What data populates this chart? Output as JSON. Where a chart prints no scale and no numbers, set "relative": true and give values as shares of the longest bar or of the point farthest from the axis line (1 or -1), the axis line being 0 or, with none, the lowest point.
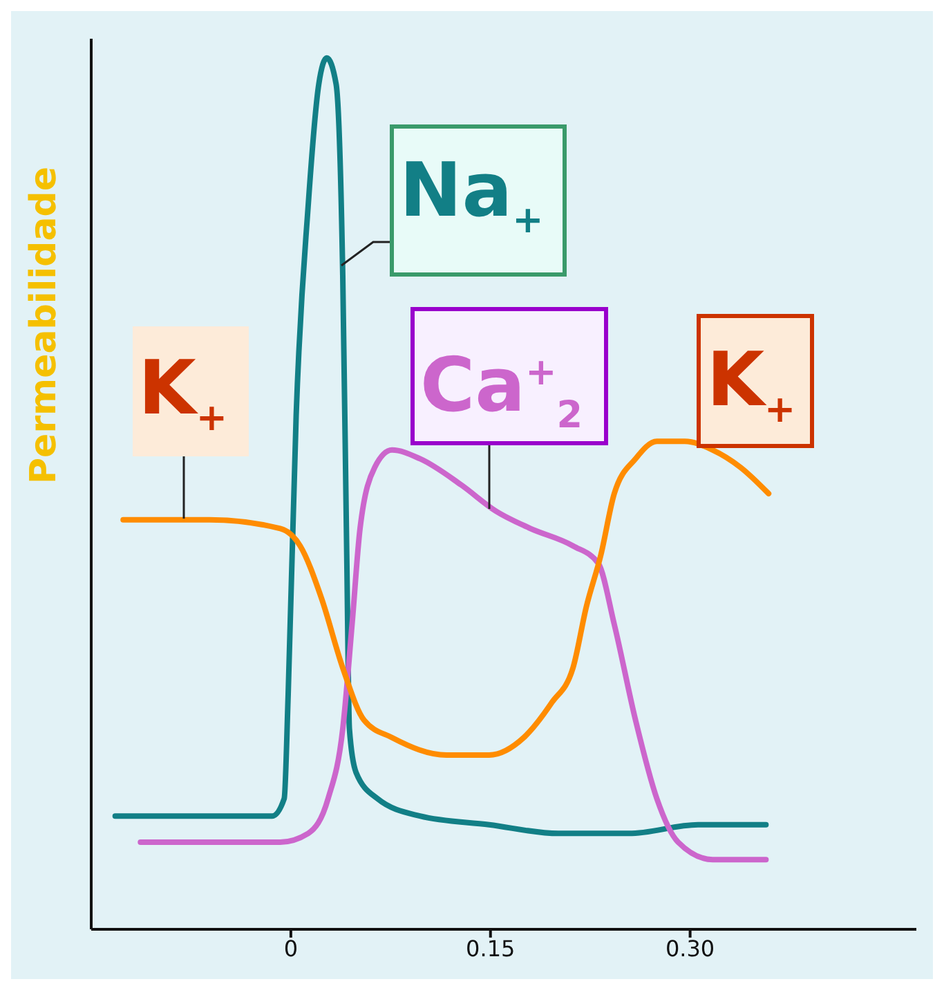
{
  "chart_data": {
    "type": "line",
    "ylabel": "Permeabilidade",
    "relative": true,
    "xlim": [
      -0.15,
      0.47
    ],
    "xticks": [
      0,
      0.15,
      {
        "value": 0.3,
        "label": "0.30"
      }
    ],
    "series": [
      {
        "name": "Na$_{+}$",
        "color": "#127f86",
        "x": [
          -0.132,
          -0.014,
          -0.005,
          -0.002,
          0.004,
          0.013,
          0.021,
          0.027,
          0.034,
          0.039,
          0.042,
          0.044,
          0.049,
          0.065,
          0.097,
          0.149,
          0.201,
          0.254,
          0.306,
          0.357
        ],
        "values": [
          0.13,
          0.13,
          0.15,
          0.27,
          0.59,
          0.83,
          0.97,
          1,
          0.97,
          0.75,
          0.43,
          0.23,
          0.18,
          0.15,
          0.13,
          0.12,
          0.11,
          0.11,
          0.12,
          0.12
        ]
      },
      {
        "name": "Ca$^{+}$$_{2}$",
        "color": "#cc66cc",
        "x": [
          -0.113,
          -0.008,
          0.013,
          0.028,
          0.039,
          0.046,
          0.052,
          0.063,
          0.076,
          0.097,
          0.128,
          0.154,
          0.18,
          0.212,
          0.231,
          0.243,
          0.259,
          0.275,
          0.291,
          0.317,
          0.357
        ],
        "values": [
          0.1,
          0.1,
          0.11,
          0.15,
          0.23,
          0.35,
          0.46,
          0.53,
          0.55,
          0.54,
          0.51,
          0.48,
          0.46,
          0.44,
          0.42,
          0.35,
          0.24,
          0.15,
          0.1,
          0.08,
          0.08
        ]
      },
      {
        "name": "K$_{+}$",
        "color": "#ff8c00",
        "x": [
          -0.126,
          -0.061,
          -0.008,
          0.007,
          0.023,
          0.039,
          0.055,
          0.076,
          0.117,
          0.149,
          0.175,
          0.196,
          0.212,
          0.222,
          0.233,
          0.243,
          0.259,
          0.275,
          0.296,
          0.317,
          0.338,
          0.359
        ],
        "values": [
          0.47,
          0.47,
          0.46,
          0.44,
          0.38,
          0.3,
          0.24,
          0.22,
          0.2,
          0.2,
          0.22,
          0.26,
          0.3,
          0.37,
          0.43,
          0.5,
          0.54,
          0.56,
          0.56,
          0.55,
          0.53,
          0.5
        ]
      }
    ],
    "annotations": [
      {
        "text": "K$_{+}$",
        "x": 0.33,
        "y": 0.54
      }
    ]
  }
}
